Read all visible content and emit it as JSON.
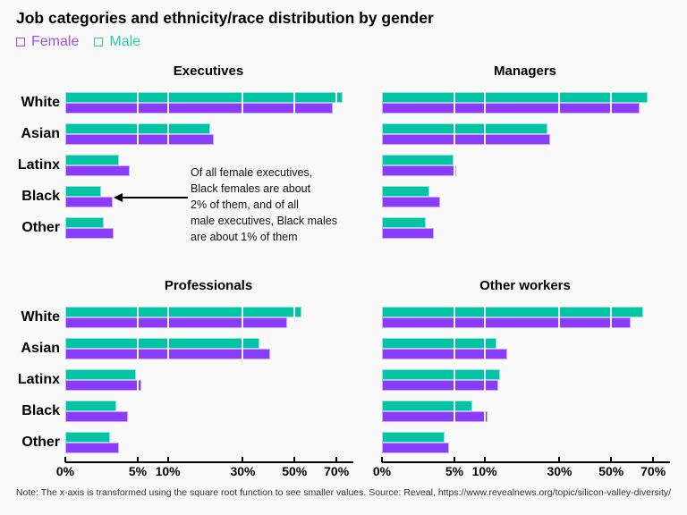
{
  "title": "Job categories and ethnicity/race distribution by gender",
  "legend": {
    "female": {
      "label": "Female",
      "color": "#9b4ef0"
    },
    "male": {
      "label": "Male",
      "color": "#2cc9ab"
    }
  },
  "annotation": {
    "lines": [
      "Of all female executives,",
      "Black females are about",
      "2% of them, and of all",
      "male executives, Black males",
      "are about 1% of them"
    ]
  },
  "note": "Note: The x-axis is transformed using the square root function to see smaller values. Source: Reveal, https://www.revealnews.org/topic/silicon-valley-diversity/",
  "chart_data": {
    "type": "bar",
    "orientation": "horizontal",
    "x_transform": "sqrt",
    "x_ticks": [
      0,
      5,
      10,
      30,
      50,
      70
    ],
    "x_tick_labels": [
      "0%",
      "5%",
      "10%",
      "30%",
      "50%",
      "70%"
    ],
    "x_max": 78,
    "grid": "white vertical gridlines over bars at each tick",
    "legend_position": "top-left",
    "categories": [
      "White",
      "Asian",
      "Latinx",
      "Black",
      "Other"
    ],
    "series_names": [
      "Male",
      "Female"
    ],
    "colors": {
      "Male": "#00c4a4",
      "Female": "#8b3bfa"
    },
    "panels": [
      {
        "title": "Executives",
        "Male": [
          73,
          20,
          2.7,
          1.2,
          1.4
        ],
        "Female": [
          68,
          21,
          3.9,
          2.1,
          2.2
        ]
      },
      {
        "title": "Managers",
        "Male": [
          67,
          26,
          4.9,
          2.1,
          1.8
        ],
        "Female": [
          63,
          27,
          5.3,
          3.2,
          2.6
        ]
      },
      {
        "title": "Professionals",
        "Male": [
          53,
          36,
          4.7,
          2.5,
          1.9
        ],
        "Female": [
          47,
          40,
          5.5,
          3.7,
          2.7
        ]
      },
      {
        "title": "Other workers",
        "Male": [
          65,
          12.4,
          13.2,
          7.7,
          3.7
        ],
        "Female": [
          59,
          15,
          12.8,
          10.6,
          4.3
        ]
      }
    ]
  }
}
